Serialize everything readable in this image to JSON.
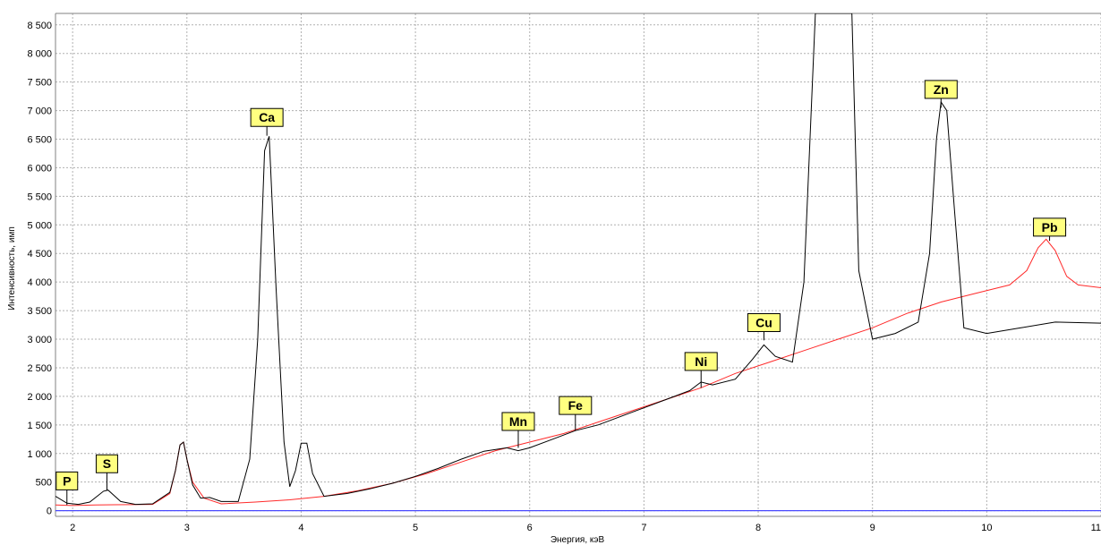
{
  "chart_data": {
    "type": "line",
    "xlabel": "Энергия, кэВ",
    "ylabel": "Интенсивность, имп",
    "xlim": [
      1.85,
      11.0
    ],
    "ylim": [
      -100,
      8700
    ],
    "x_ticks": [
      "2",
      "3",
      "4",
      "5",
      "6",
      "7",
      "8",
      "9",
      "10",
      "11"
    ],
    "x_tick_values": [
      2,
      3,
      4,
      5,
      6,
      7,
      8,
      9,
      10,
      11
    ],
    "y_ticks": [
      "0",
      "500",
      "1 000",
      "1 500",
      "2 000",
      "2 500",
      "3 000",
      "3 500",
      "4 000",
      "4 500",
      "5 000",
      "5 500",
      "6 000",
      "6 500",
      "7 000",
      "7 500",
      "8 000",
      "8 500"
    ],
    "y_tick_values": [
      0,
      500,
      1000,
      1500,
      2000,
      2500,
      3000,
      3500,
      4000,
      4500,
      5000,
      5500,
      6000,
      6500,
      7000,
      7500,
      8000,
      8500
    ],
    "grid": true,
    "colors": {
      "series_sample": "#000000",
      "series_reference": "#ff2a2a",
      "baseline": "#4a4aff",
      "label_fill": "#ffff80",
      "grid": "#b0b0b0"
    },
    "series": [
      {
        "color": "#000000",
        "x": [
          1.85,
          1.95,
          2.05,
          2.15,
          2.22,
          2.27,
          2.31,
          2.36,
          2.42,
          2.55,
          2.7,
          2.85,
          2.9,
          2.94,
          2.97,
          3.0,
          3.05,
          3.12,
          3.2,
          3.3,
          3.45,
          3.55,
          3.62,
          3.68,
          3.72,
          3.78,
          3.85,
          3.9,
          3.95,
          4.0,
          4.05,
          4.1,
          4.2,
          4.4,
          4.6,
          4.8,
          5.0,
          5.2,
          5.4,
          5.6,
          5.8,
          5.9,
          6.0,
          6.2,
          6.4,
          6.6,
          6.8,
          7.0,
          7.2,
          7.4,
          7.5,
          7.6,
          7.8,
          7.95,
          8.05,
          8.15,
          8.3,
          8.4,
          8.5,
          8.55,
          8.65,
          8.75,
          8.82,
          8.88,
          9.0,
          9.2,
          9.4,
          9.5,
          9.56,
          9.6,
          9.65,
          9.72,
          9.8,
          10.0,
          10.3,
          10.6,
          11.0
        ],
        "values": [
          250,
          130,
          110,
          150,
          260,
          340,
          360,
          270,
          160,
          110,
          120,
          320,
          700,
          1150,
          1200,
          900,
          450,
          220,
          230,
          160,
          160,
          900,
          3000,
          6300,
          6550,
          3900,
          1200,
          420,
          700,
          1180,
          1180,
          650,
          250,
          300,
          380,
          480,
          600,
          740,
          900,
          1040,
          1100,
          1050,
          1100,
          1250,
          1400,
          1500,
          1650,
          1800,
          1950,
          2100,
          2250,
          2200,
          2300,
          2650,
          2900,
          2700,
          2600,
          4000,
          8700,
          8700,
          8700,
          8700,
          8700,
          4200,
          3000,
          3100,
          3300,
          4500,
          6500,
          7150,
          7000,
          5200,
          3200,
          3100,
          3200,
          3300,
          3280
        ]
      },
      {
        "color": "#ff2a2a",
        "x": [
          1.85,
          2.0,
          2.2,
          2.5,
          2.7,
          2.85,
          2.9,
          2.94,
          2.97,
          3.0,
          3.05,
          3.15,
          3.3,
          3.6,
          3.9,
          4.2,
          4.5,
          4.8,
          5.1,
          5.4,
          5.7,
          6.0,
          6.3,
          6.6,
          6.9,
          7.2,
          7.5,
          7.8,
          8.1,
          8.4,
          8.7,
          9.0,
          9.3,
          9.6,
          9.9,
          10.2,
          10.35,
          10.45,
          10.52,
          10.6,
          10.7,
          10.8,
          11.0
        ],
        "values": [
          100,
          90,
          100,
          105,
          110,
          300,
          700,
          1150,
          1200,
          900,
          500,
          220,
          120,
          150,
          190,
          250,
          350,
          480,
          650,
          850,
          1050,
          1200,
          1350,
          1550,
          1750,
          1950,
          2150,
          2400,
          2600,
          2800,
          3000,
          3200,
          3450,
          3650,
          3800,
          3950,
          4200,
          4600,
          4750,
          4550,
          4100,
          3950,
          3900
        ]
      }
    ],
    "annotations": [
      {
        "label": "P",
        "x": 1.95,
        "y": 100,
        "box_y": 520
      },
      {
        "label": "S",
        "x": 2.3,
        "y": 350,
        "box_y": 820
      },
      {
        "label": "Ca",
        "x": 3.7,
        "y": 6560,
        "box_y": 6880
      },
      {
        "label": "Mn",
        "x": 5.9,
        "y": 1100,
        "box_y": 1560
      },
      {
        "label": "Fe",
        "x": 6.4,
        "y": 1400,
        "box_y": 1840
      },
      {
        "label": "Ni",
        "x": 7.5,
        "y": 2150,
        "box_y": 2610
      },
      {
        "label": "Cu",
        "x": 8.05,
        "y": 2980,
        "box_y": 3290
      },
      {
        "label": "Zn",
        "x": 9.6,
        "y": 7050,
        "box_y": 7370
      },
      {
        "label": "Pb",
        "x": 10.55,
        "y": 4720,
        "box_y": 4960
      }
    ]
  }
}
